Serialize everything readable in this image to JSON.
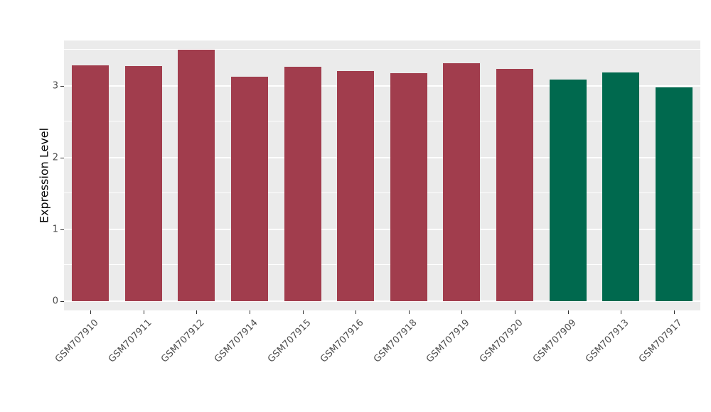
{
  "chart_data": {
    "type": "bar",
    "title": "",
    "xlabel": "",
    "ylabel": "Expression Level",
    "categories": [
      "GSM707910",
      "GSM707911",
      "GSM707912",
      "GSM707914",
      "GSM707915",
      "GSM707916",
      "GSM707918",
      "GSM707919",
      "GSM707920",
      "GSM707909",
      "GSM707913",
      "GSM707917"
    ],
    "values": [
      3.28,
      3.27,
      3.5,
      3.13,
      3.26,
      3.2,
      3.18,
      3.31,
      3.23,
      3.09,
      3.19,
      2.98
    ],
    "groups": [
      "red",
      "red",
      "red",
      "red",
      "red",
      "red",
      "red",
      "red",
      "red",
      "green",
      "green",
      "green"
    ],
    "group_colors": {
      "red": "#A13D4D",
      "green": "#00694E"
    },
    "yticks": [
      0,
      1,
      2,
      3
    ],
    "ytick_labels": [
      "0",
      "1",
      "2",
      "3"
    ],
    "minor_ticks": [
      0.5,
      1.5,
      2.5,
      3.5
    ],
    "ylim": [
      0,
      3.63
    ],
    "legend": "none",
    "grid": "on",
    "plot_background": "#EBEBEB",
    "gridline_color": "#FFFFFF",
    "tick_text_color": "#4D4D4D"
  }
}
